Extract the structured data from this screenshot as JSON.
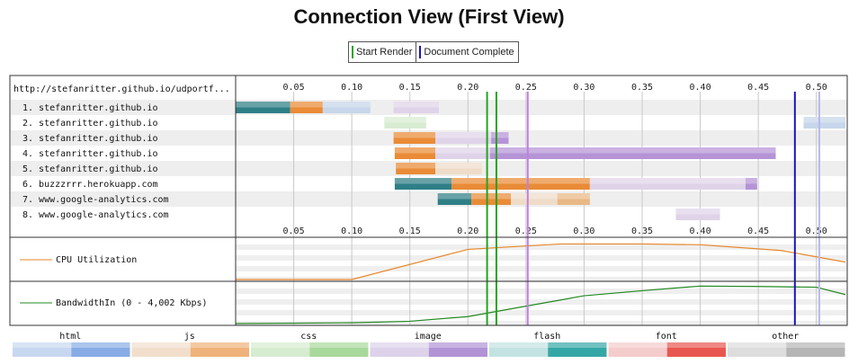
{
  "title": "Connection View (First View)",
  "legend": {
    "start_render": {
      "label": "Start Render",
      "color": "#22a51e"
    },
    "document_complete": {
      "label": "Document Complete",
      "color": "#1b14c4"
    }
  },
  "chart_data": {
    "type": "waterfall",
    "x_unit": "seconds",
    "xlim": [
      0,
      0.525
    ],
    "x_ticks": [
      "0.05",
      "0.10",
      "0.15",
      "0.20",
      "0.25",
      "0.30",
      "0.35",
      "0.40",
      "0.45",
      "0.50"
    ],
    "url_header": "http://stefanritter.github.io/udportf...",
    "markers": [
      {
        "name": "start_render",
        "x": 0.2245,
        "color": "#22a51e"
      },
      {
        "name": "start_render_2",
        "x": 0.2165,
        "color": "#22a51e"
      },
      {
        "name": "document_complete",
        "x": 0.4815,
        "color": "#1b14c4"
      },
      {
        "name": "line_purple",
        "x": 0.2515,
        "color": "#c080e0"
      },
      {
        "name": "line_lavender",
        "x": 0.5025,
        "color": "#b8b8ec"
      }
    ],
    "connections": [
      {
        "label": "1. stefanritter.github.io",
        "segments": [
          {
            "start": 0.0,
            "end": 0.047,
            "kind": "flash",
            "shade": "dark"
          },
          {
            "start": 0.047,
            "end": 0.075,
            "kind": "js",
            "shade": "dark"
          },
          {
            "start": 0.075,
            "end": 0.116,
            "kind": "html",
            "shade": "light"
          },
          {
            "start": 0.136,
            "end": 0.175,
            "kind": "image",
            "shade": "light"
          }
        ]
      },
      {
        "label": "2. stefanritter.github.io",
        "segments": [
          {
            "start": 0.128,
            "end": 0.164,
            "kind": "css",
            "shade": "light"
          },
          {
            "start": 0.489,
            "end": 0.525,
            "kind": "html",
            "shade": "light"
          }
        ]
      },
      {
        "label": "3. stefanritter.github.io",
        "segments": [
          {
            "start": 0.136,
            "end": 0.172,
            "kind": "js",
            "shade": "dark"
          },
          {
            "start": 0.172,
            "end": 0.22,
            "kind": "image",
            "shade": "light"
          },
          {
            "start": 0.22,
            "end": 0.235,
            "kind": "image",
            "shade": "dark"
          }
        ]
      },
      {
        "label": "4. stefanritter.github.io",
        "segments": [
          {
            "start": 0.137,
            "end": 0.172,
            "kind": "js",
            "shade": "dark"
          },
          {
            "start": 0.172,
            "end": 0.219,
            "kind": "image",
            "shade": "light"
          },
          {
            "start": 0.219,
            "end": 0.465,
            "kind": "image",
            "shade": "dark"
          }
        ]
      },
      {
        "label": "5. stefanritter.github.io",
        "segments": [
          {
            "start": 0.138,
            "end": 0.172,
            "kind": "js",
            "shade": "dark"
          },
          {
            "start": 0.172,
            "end": 0.212,
            "kind": "js",
            "shade": "light"
          }
        ]
      },
      {
        "label": "6. buzzzrrr.herokuapp.com",
        "segments": [
          {
            "start": 0.137,
            "end": 0.186,
            "kind": "flash",
            "shade": "dark"
          },
          {
            "start": 0.186,
            "end": 0.305,
            "kind": "js",
            "shade": "dark"
          },
          {
            "start": 0.305,
            "end": 0.439,
            "kind": "image",
            "shade": "light"
          },
          {
            "start": 0.439,
            "end": 0.449,
            "kind": "image",
            "shade": "dark"
          }
        ]
      },
      {
        "label": "7. www.google-analytics.com",
        "segments": [
          {
            "start": 0.174,
            "end": 0.203,
            "kind": "flash",
            "shade": "dark"
          },
          {
            "start": 0.203,
            "end": 0.237,
            "kind": "js",
            "shade": "dark"
          },
          {
            "start": 0.237,
            "end": 0.277,
            "kind": "js",
            "shade": "light"
          },
          {
            "start": 0.277,
            "end": 0.305,
            "kind": "js",
            "shade": "mid"
          }
        ]
      },
      {
        "label": "8. www.google-analytics.com",
        "segments": [
          {
            "start": 0.379,
            "end": 0.417,
            "kind": "image",
            "shade": "light"
          }
        ]
      }
    ],
    "cpu": {
      "label": "CPU Utilization",
      "color": "#e8862a",
      "x": [
        0.0,
        0.1,
        0.2,
        0.28,
        0.35,
        0.4,
        0.47,
        0.525
      ],
      "y": [
        0.0,
        0.0,
        0.78,
        0.92,
        0.92,
        0.9,
        0.75,
        0.45
      ]
    },
    "bandwidth": {
      "label": "BandwidthIn (0 - 4,002 Kbps)",
      "color": "#228822",
      "x": [
        0.0,
        0.1,
        0.15,
        0.2,
        0.25,
        0.3,
        0.35,
        0.4,
        0.45,
        0.5,
        0.525
      ],
      "y": [
        0.0,
        0.02,
        0.06,
        0.18,
        0.45,
        0.72,
        0.85,
        0.97,
        0.96,
        0.94,
        0.75
      ]
    },
    "content_types": [
      {
        "name": "html",
        "light": "#c8d7f0",
        "dark": "#87ace5"
      },
      {
        "name": "js",
        "light": "#f1dfcc",
        "dark": "#efb27a"
      },
      {
        "name": "css",
        "light": "#d6ecd0",
        "dark": "#a8d99b"
      },
      {
        "name": "image",
        "light": "#ddd2ea",
        "dark": "#b193d6"
      },
      {
        "name": "flash",
        "light": "#c2e3e2",
        "dark": "#35a7a6"
      },
      {
        "name": "font",
        "light": "#f4cccb",
        "dark": "#e8574f"
      },
      {
        "name": "other",
        "light": "#dddddd",
        "dark": "#b5b5b5"
      }
    ],
    "bar_colors": {
      "html": {
        "light": "#c7d6ea",
        "dark": "#8fb0dd",
        "mid": "#a9c2e4"
      },
      "js": {
        "light": "#efdcc8",
        "dark": "#e98b37",
        "mid": "#e9b884"
      },
      "css": {
        "light": "#d8ecd2",
        "dark": "#a8d99b",
        "mid": "#c0e3b6"
      },
      "image": {
        "light": "#dfd3e9",
        "dark": "#b594d6",
        "mid": "#c8b2df"
      },
      "flash": {
        "light": "#c2e3e2",
        "dark": "#2f7f86",
        "mid": "#5fa7aa"
      }
    }
  }
}
